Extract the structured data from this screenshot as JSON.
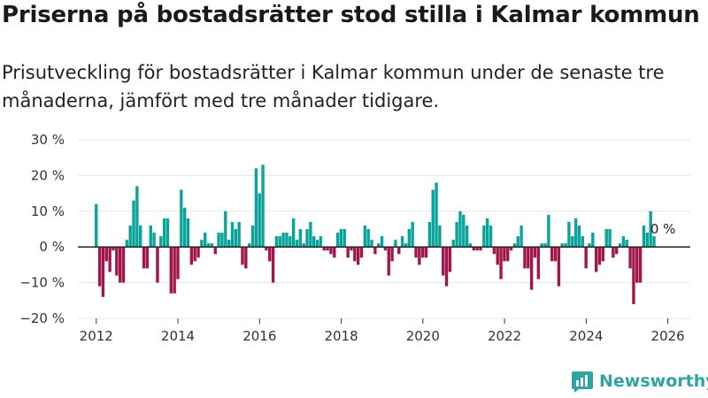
{
  "title": "Priserna på bostadsrätter stod stilla i Kalmar kommun",
  "subtitle": "Prisutveckling för bostadsrätter i Kalmar kommun under de senaste tre månaderna, jämfört med tre månader tidigare.",
  "brand": {
    "name": "Newsworthy",
    "icon": "newsworthy-logo-icon"
  },
  "colors": {
    "positive": "#0aa39a",
    "negative": "#a1164a",
    "zero_line": "#222222",
    "grid": "#e6e6e6"
  },
  "chart_data": {
    "type": "bar",
    "unit": "%",
    "x_start": 2012.0,
    "x_step": 0.0833,
    "values": [
      12,
      -11,
      -14,
      -4,
      -7,
      -1,
      -8,
      -10,
      -10,
      2,
      6,
      13,
      17,
      6,
      -6,
      -6,
      6,
      4,
      -10,
      3,
      8,
      8,
      -13,
      -13,
      -9,
      16,
      11,
      8,
      -5,
      -4,
      -3,
      2,
      4,
      1,
      1,
      -2,
      4,
      4,
      10,
      2,
      7,
      5,
      7,
      -5,
      -6,
      1,
      6,
      22,
      15,
      23,
      -1,
      -4,
      -10,
      3,
      3,
      4,
      4,
      3,
      8,
      2,
      5,
      1,
      5,
      7,
      3,
      2,
      3,
      -1,
      -1,
      -2,
      -3,
      4,
      5,
      5,
      -3,
      -1,
      -4,
      -5,
      -3,
      6,
      5,
      2,
      -2,
      1,
      3,
      -1,
      -8,
      -4,
      2,
      -2,
      3,
      1,
      5,
      7,
      -3,
      -5,
      -3,
      -3,
      7,
      16,
      18,
      6,
      -8,
      -11,
      -7,
      2,
      7,
      10,
      9,
      6,
      1,
      -1,
      -1,
      -1,
      6,
      8,
      6,
      -2,
      -5,
      -9,
      -4,
      -4,
      -1,
      1,
      3,
      6,
      -6,
      -6,
      -12,
      -3,
      -9,
      1,
      1,
      9,
      -4,
      -4,
      -11,
      1,
      1,
      7,
      3,
      8,
      6,
      3,
      -6,
      1,
      4,
      -7,
      -5,
      -4,
      5,
      5,
      -3,
      -2,
      1,
      3,
      2,
      -6,
      -16,
      -10,
      -10,
      6,
      4,
      10,
      3,
      0
    ],
    "end_label": "0 %",
    "x_ticks": [
      2012,
      2014,
      2016,
      2018,
      2020,
      2022,
      2024,
      2026
    ],
    "x_tick_labels": [
      "2012",
      "2014",
      "2016",
      "2018",
      "2020",
      "2022",
      "2024",
      "2026"
    ],
    "y_ticks": [
      30,
      20,
      10,
      0,
      -10,
      -20
    ],
    "y_tick_labels": [
      "30 %",
      "20 %",
      "10 %",
      "0 %",
      "−10 %",
      "−20 %"
    ],
    "ylim": [
      -20,
      30
    ],
    "xlim": [
      2011.55,
      2026.55
    ],
    "grid": true
  }
}
